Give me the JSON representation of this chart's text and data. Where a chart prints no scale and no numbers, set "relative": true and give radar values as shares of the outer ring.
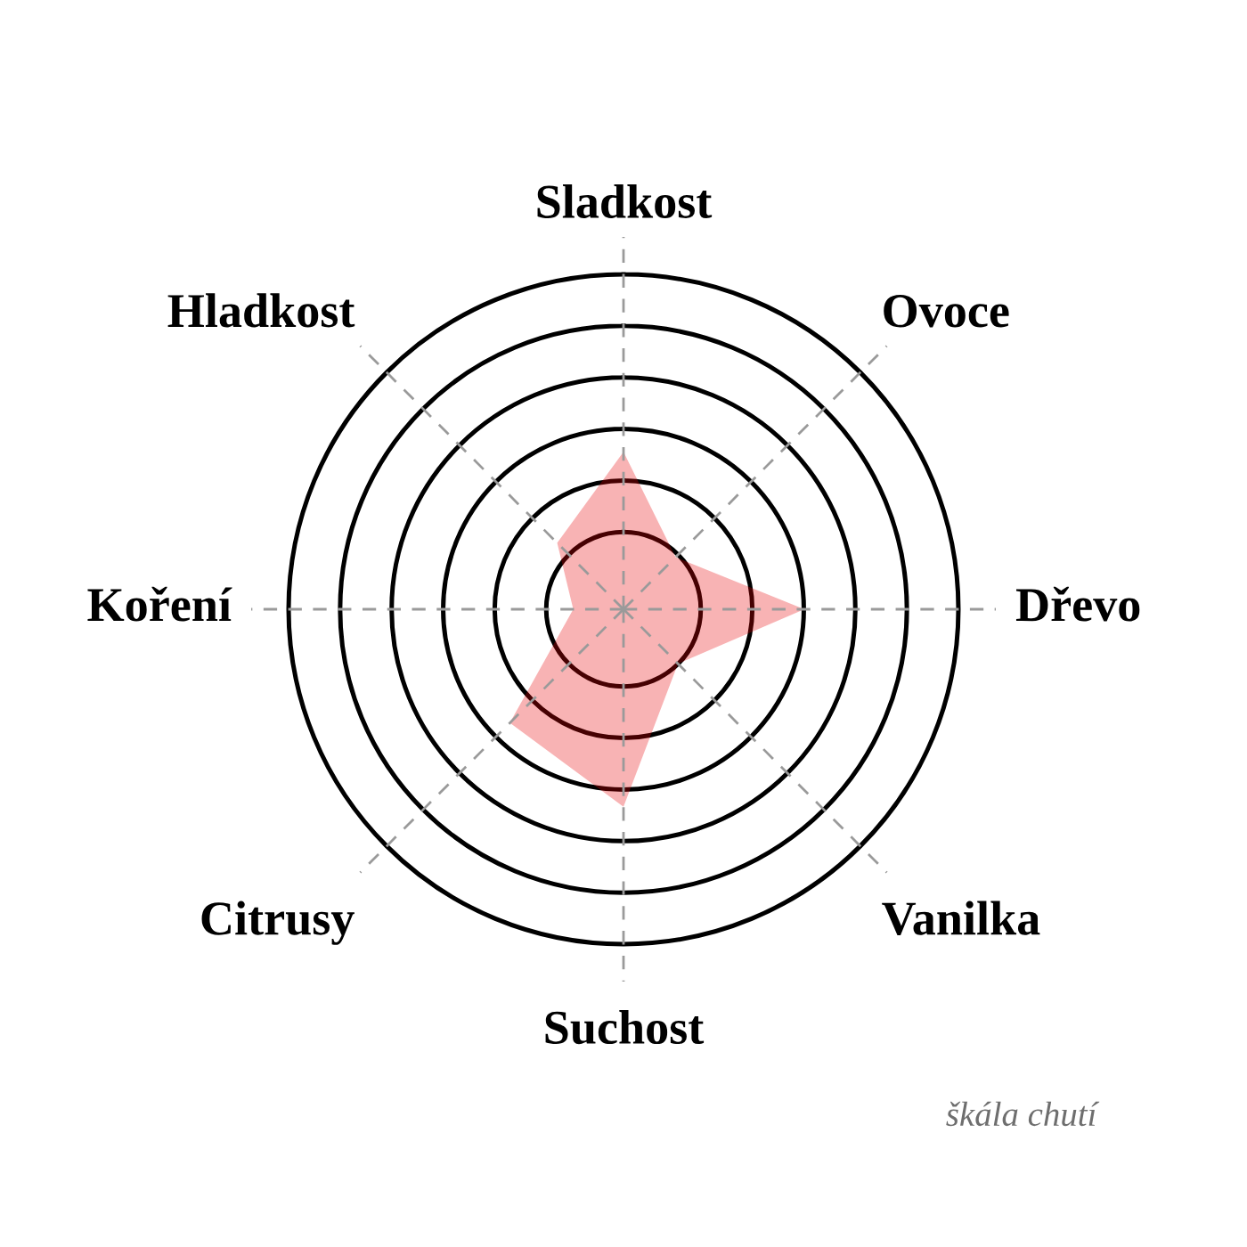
{
  "chart_data": {
    "type": "radar",
    "relative": true,
    "grid": true,
    "categories": [
      "Sladkost",
      "Ovoce",
      "Dřevo",
      "Vanilka",
      "Suchost",
      "Citrusy",
      "Koření",
      "Hladkost"
    ],
    "series": [
      {
        "color": "#f8b3b5",
        "values": [
          0.47,
          0.22,
          0.54,
          0.23,
          0.59,
          0.48,
          0.15,
          0.28
        ]
      }
    ],
    "annotations": [
      "škála chutí"
    ]
  }
}
